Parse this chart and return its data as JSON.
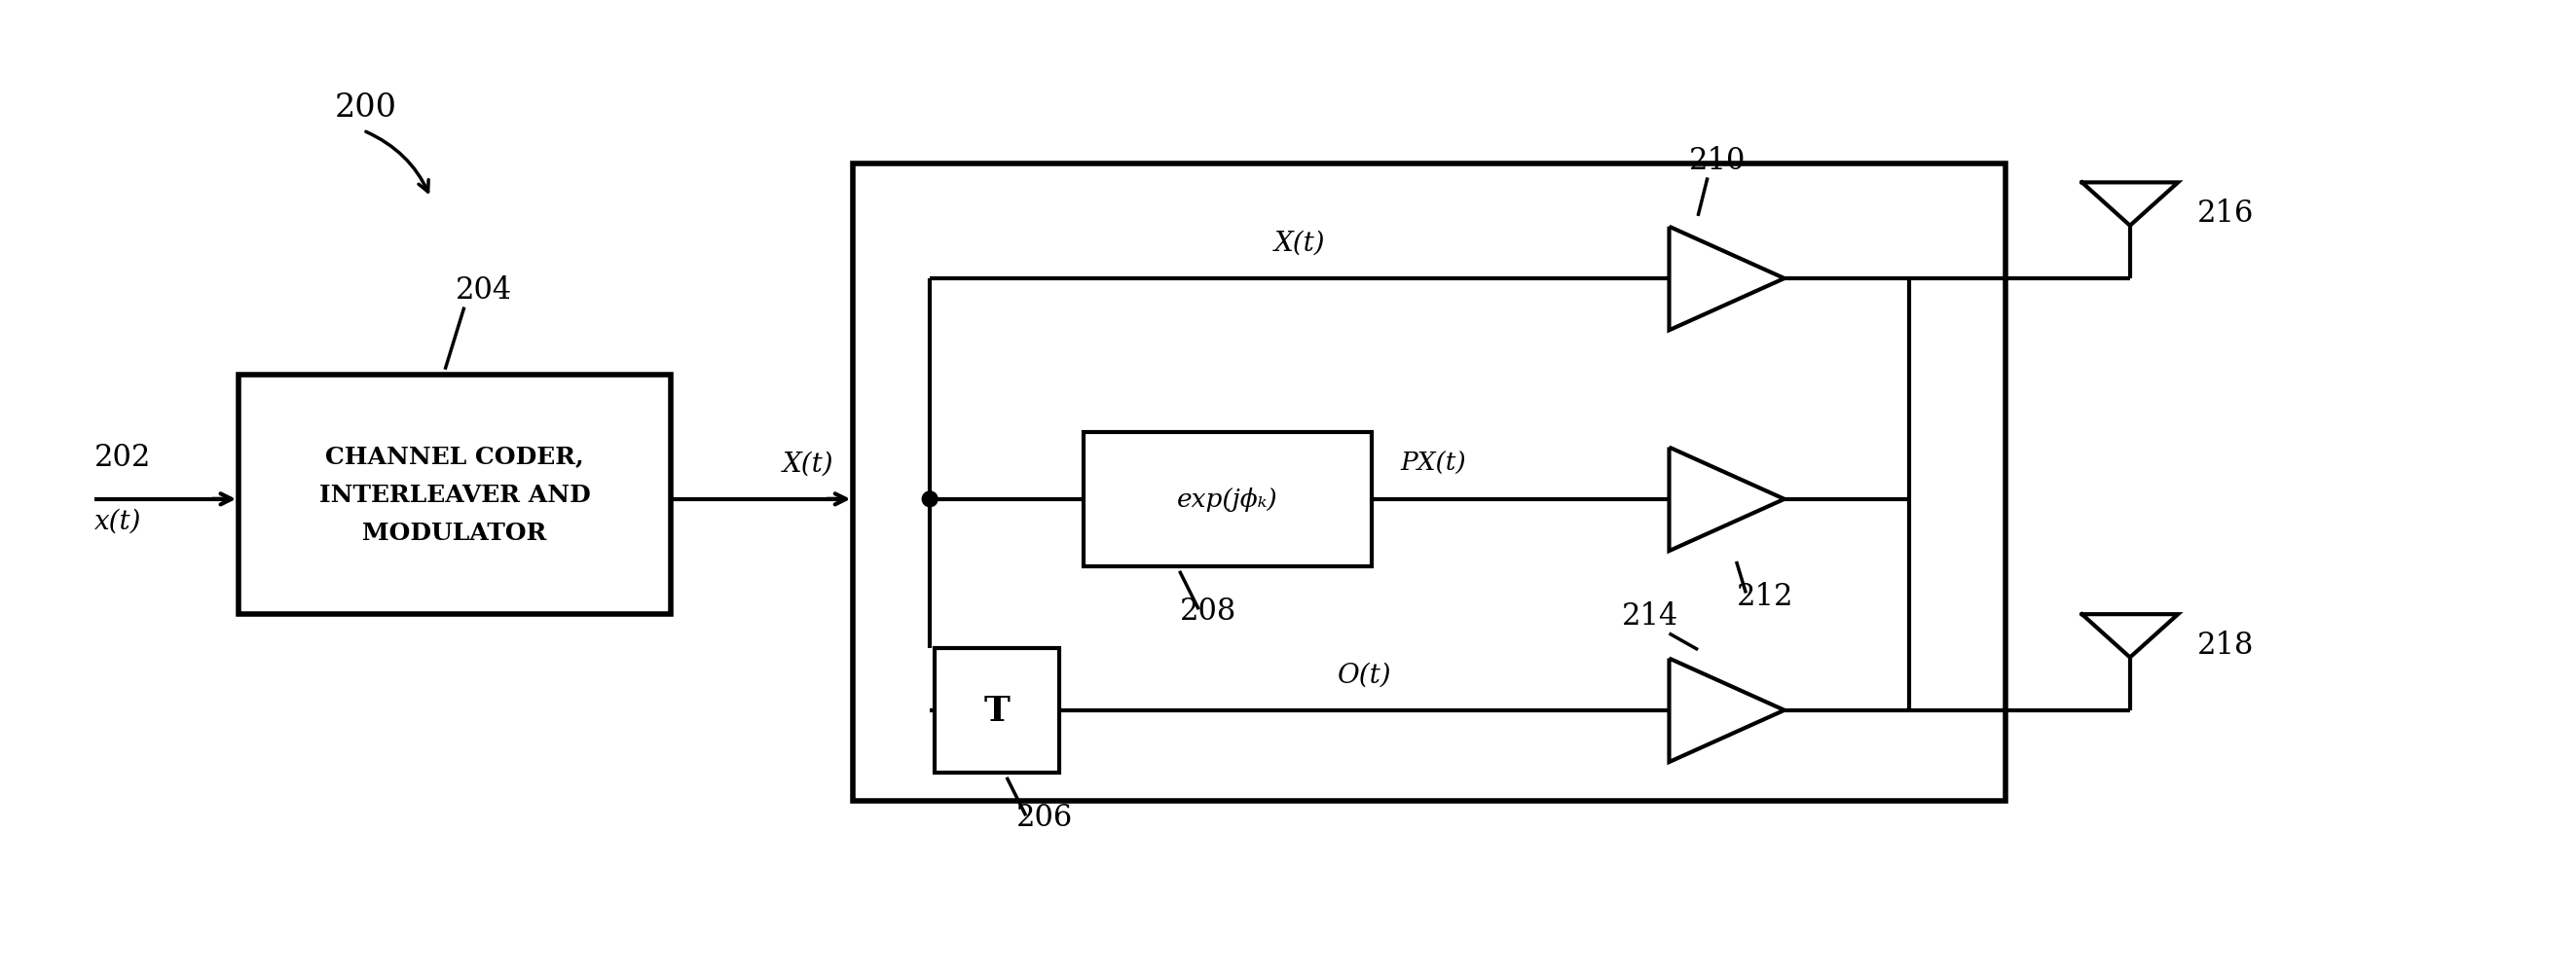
{
  "bg_color": "#ffffff",
  "line_color": "#000000",
  "lw": 3.0,
  "fig_width": 26.46,
  "fig_height": 10.04,
  "label_200": "200",
  "label_202": "202",
  "label_204": "204",
  "label_206": "206",
  "label_208": "208",
  "label_210": "210",
  "label_212": "212",
  "label_214": "214",
  "label_216": "216",
  "label_218": "218",
  "text_xt_input": "x(t)",
  "text_Xt_label": "X(t)",
  "text_Xt_top": "X(t)",
  "text_exp": "exp(jϕₖ)",
  "text_Px": "PΧ(t)",
  "text_Ot": "O(t)",
  "text_T": "T",
  "text_channel_line1": "CHANNEL CODER,",
  "text_channel_line2": "INTERLEAVER AND",
  "text_channel_line3": "MODULATOR"
}
